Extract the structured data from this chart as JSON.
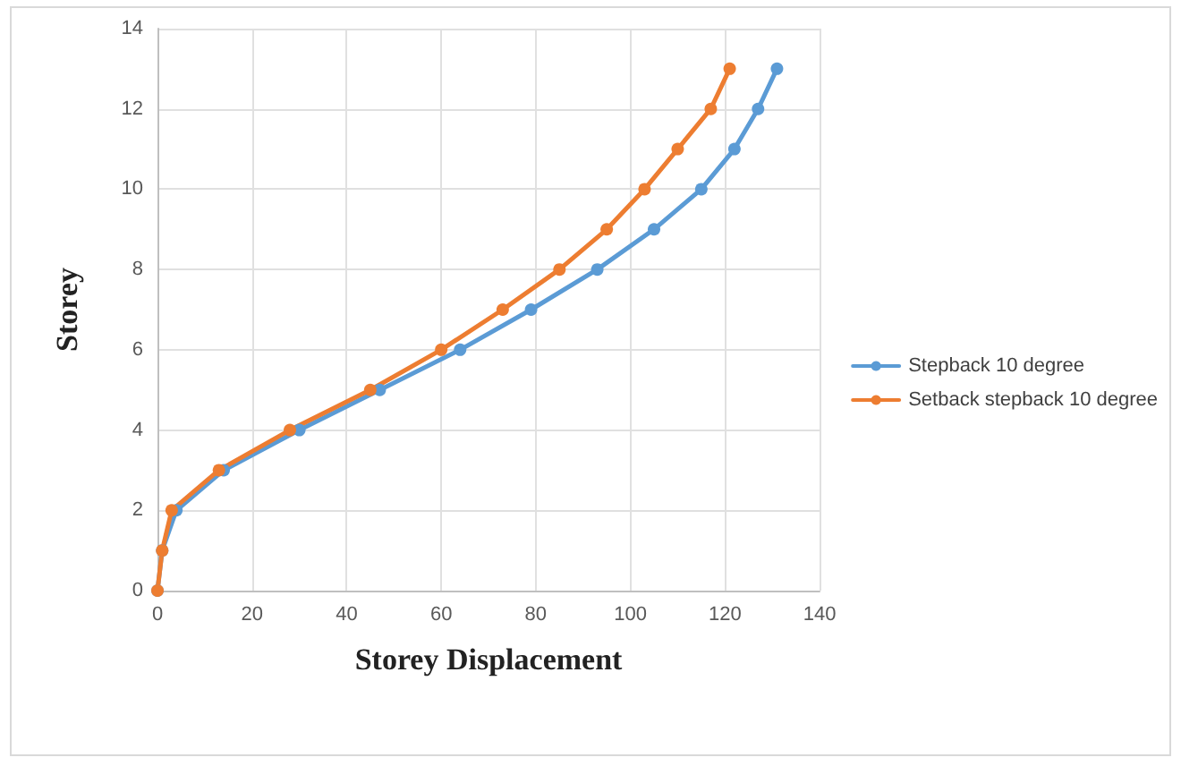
{
  "chart_data": {
    "type": "line",
    "xlabel": "Storey Displacement",
    "ylabel": "Storey",
    "xlim": [
      0,
      140
    ],
    "xticks": [
      0,
      20,
      40,
      60,
      80,
      100,
      120,
      140
    ],
    "ylim": [
      0,
      14
    ],
    "yticks": [
      0,
      2,
      4,
      6,
      8,
      10,
      12,
      14
    ],
    "grid": true,
    "legend": "right",
    "marker": "circle",
    "line_style": "solid",
    "series": [
      {
        "name": "Stepback 10 degree",
        "color": "#5b9bd5",
        "x": [
          0,
          1,
          4,
          14,
          30,
          47,
          64,
          79,
          93,
          105,
          115,
          122,
          127,
          131
        ],
        "values": [
          0,
          1,
          2,
          3,
          4,
          5,
          6,
          7,
          8,
          9,
          10,
          11,
          12,
          13
        ]
      },
      {
        "name": "Setback stepback 10 degree",
        "color": "#ed7d31",
        "x": [
          0,
          1,
          3,
          13,
          28,
          45,
          60,
          73,
          85,
          95,
          103,
          110,
          117,
          121
        ],
        "values": [
          0,
          1,
          2,
          3,
          4,
          5,
          6,
          7,
          8,
          9,
          10,
          11,
          12,
          13
        ]
      }
    ]
  }
}
